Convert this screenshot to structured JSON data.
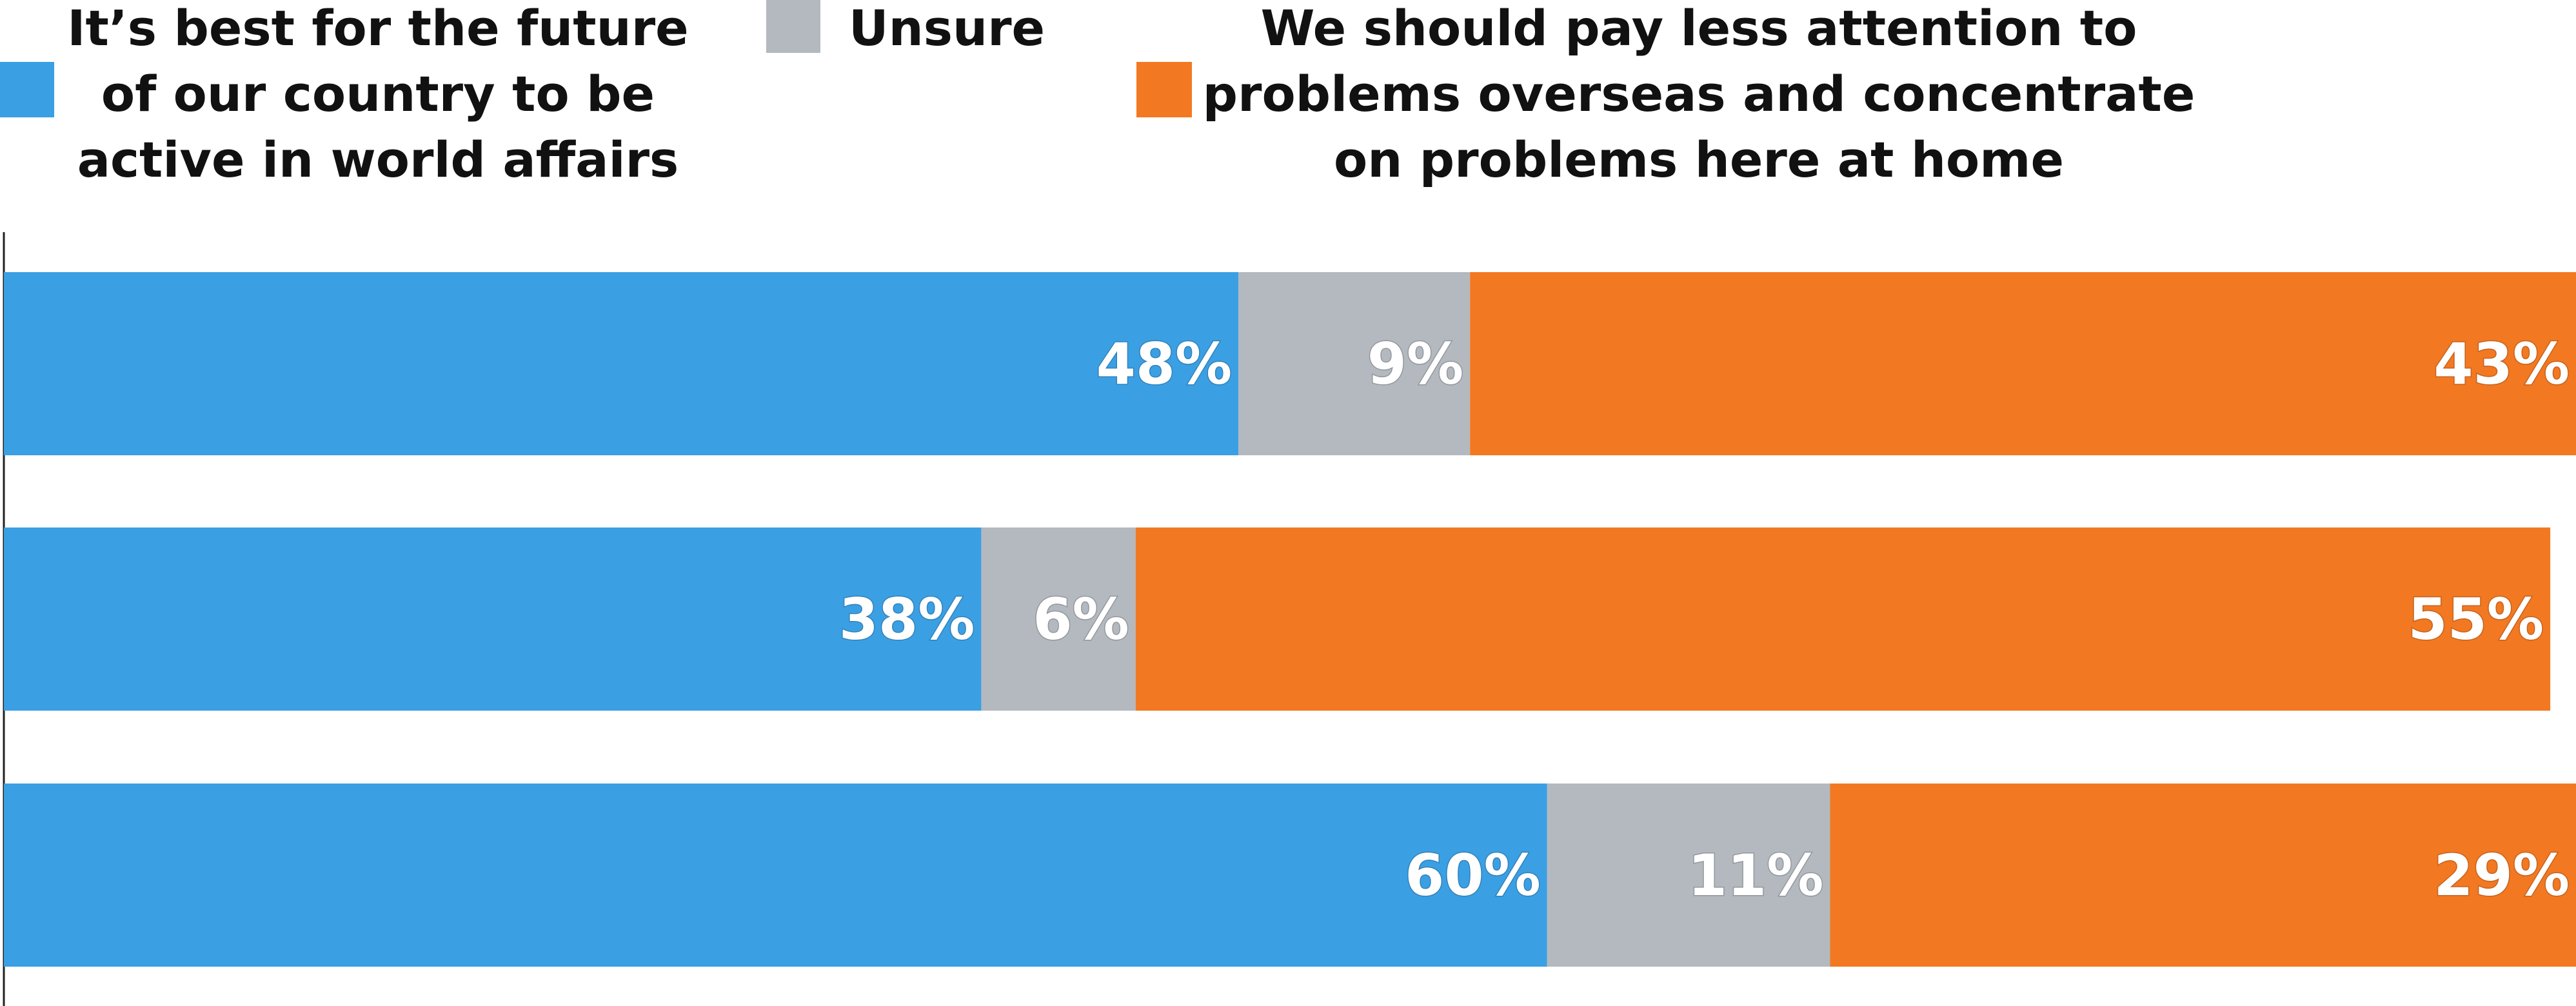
{
  "chart_data": {
    "type": "bar",
    "orientation": "horizontal",
    "stacked": true,
    "normalized": true,
    "categories": [
      "",
      "",
      ""
    ],
    "series": [
      {
        "name": "It's best for the future of our country to be active in world affairs",
        "legend_lines": [
          "It’s best for the future",
          "of our country to be",
          "active in world affairs"
        ],
        "color": "#3b9fe3",
        "values": [
          48,
          38,
          60
        ],
        "labels": [
          "48%",
          "38%",
          "60%"
        ]
      },
      {
        "name": "Unsure",
        "legend_lines": [
          "Unsure"
        ],
        "color": "#b3b9bf",
        "values": [
          9,
          6,
          11
        ],
        "labels": [
          "9%",
          "6%",
          "11%"
        ]
      },
      {
        "name": "We should pay less attention to problems overseas and concentrate on problems here at home",
        "legend_lines": [
          "We should pay less attention to",
          "problems overseas and concentrate",
          "on problems here at home"
        ],
        "color": "#f27822",
        "values": [
          43,
          55,
          29
        ],
        "labels": [
          "43%",
          "55%",
          "29%"
        ]
      }
    ],
    "xlim": [
      0,
      100
    ],
    "value_suffix": "%",
    "legend_position": "top",
    "grid": false,
    "title": "",
    "xlabel": "",
    "ylabel": ""
  }
}
